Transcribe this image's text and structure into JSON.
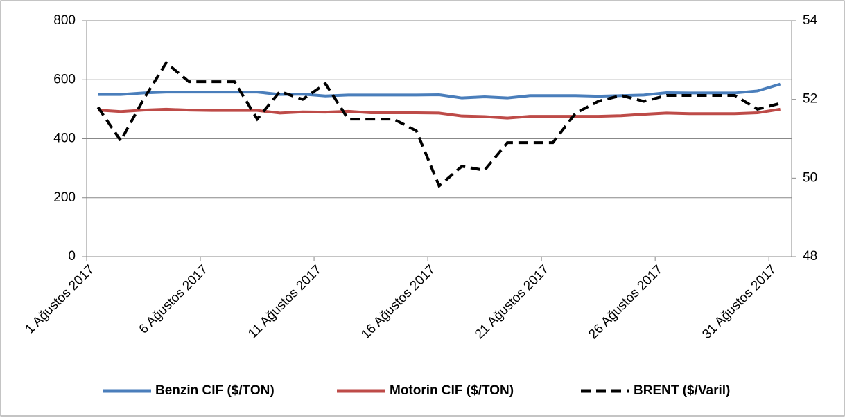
{
  "chart_data": {
    "type": "line",
    "categories": [
      "1 Ağustos 2017",
      null,
      null,
      null,
      null,
      "6 Ağustos 2017",
      null,
      null,
      null,
      null,
      "11 Ağustos 2017",
      null,
      null,
      null,
      null,
      "16 Ağustos 2017",
      null,
      null,
      null,
      null,
      "21 Ağustos 2017",
      null,
      null,
      null,
      null,
      "26 Ağustos 2017",
      null,
      null,
      null,
      null,
      "31 Ağustos 2017"
    ],
    "series": [
      {
        "name": "Benzin CIF ($/TON)",
        "color": "#4a7ebb",
        "values": [
          550,
          550,
          555,
          558,
          558,
          558,
          558,
          558,
          550,
          551,
          545,
          548,
          548,
          548,
          548,
          549,
          538,
          542,
          538,
          546,
          546,
          546,
          544,
          546,
          548,
          556,
          555,
          555,
          555,
          562,
          585
        ]
      },
      {
        "name": "Motorin CIF ($/TON)",
        "color": "#be4b48",
        "values": [
          497,
          492,
          497,
          500,
          497,
          496,
          496,
          496,
          487,
          491,
          490,
          493,
          488,
          488,
          488,
          487,
          477,
          475,
          470,
          476,
          476,
          476,
          476,
          478,
          483,
          487,
          485,
          485,
          485,
          488,
          500
        ]
      },
      {
        "name": "BRENT ($/Varil)",
        "color": "#000000",
        "axis": "y2",
        "dashed": true,
        "values": [
          51.8,
          50.95,
          52.0,
          52.93,
          52.45,
          52.45,
          52.45,
          51.5,
          52.2,
          52.0,
          52.4,
          51.5,
          51.5,
          51.5,
          51.2,
          49.8,
          50.3,
          50.2,
          50.9,
          50.9,
          50.9,
          51.65,
          51.95,
          52.1,
          51.95,
          52.1,
          52.1,
          52.1,
          52.1,
          51.75,
          51.9
        ]
      }
    ],
    "ylim": [
      0,
      800
    ],
    "yticks": [
      0,
      200,
      400,
      600,
      800
    ],
    "y2lim": [
      48,
      54
    ],
    "y2ticks": [
      48,
      50,
      52,
      54
    ],
    "grid": true,
    "legend": "bottom"
  }
}
